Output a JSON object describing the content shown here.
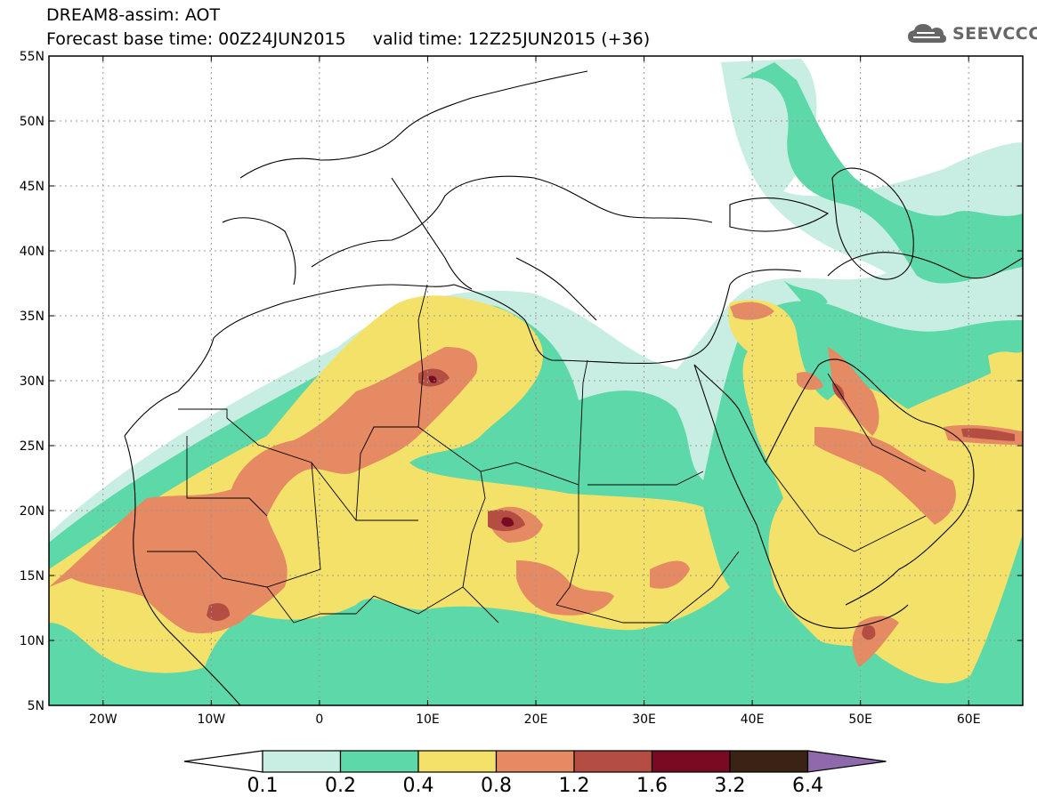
{
  "title_line1": "DREAM8-assim: AOT",
  "title_line2_left": "Forecast base time: 00Z24JUN2015",
  "title_line2_right": "valid time: 12Z25JUN2015 (+36)",
  "logo": {
    "text": "SEEVCCC",
    "icon": "cloud-icon",
    "color": "#666666"
  },
  "map": {
    "lon_range": [
      -25,
      65
    ],
    "lat_range": [
      5,
      55
    ],
    "lat_ticks": [
      {
        "value": 55,
        "label": "55N"
      },
      {
        "value": 50,
        "label": "50N"
      },
      {
        "value": 45,
        "label": "45N"
      },
      {
        "value": 40,
        "label": "40N"
      },
      {
        "value": 35,
        "label": "35N"
      },
      {
        "value": 30,
        "label": "30N"
      },
      {
        "value": 25,
        "label": "25N"
      },
      {
        "value": 20,
        "label": "20N"
      },
      {
        "value": 15,
        "label": "15N"
      },
      {
        "value": 10,
        "label": "10N"
      },
      {
        "value": 5,
        "label": "5N"
      }
    ],
    "lon_ticks": [
      {
        "value": -20,
        "label": "20W"
      },
      {
        "value": -10,
        "label": "10W"
      },
      {
        "value": 0,
        "label": "0"
      },
      {
        "value": 10,
        "label": "10E"
      },
      {
        "value": 20,
        "label": "20E"
      },
      {
        "value": 30,
        "label": "30E"
      },
      {
        "value": 40,
        "label": "40E"
      },
      {
        "value": 50,
        "label": "50E"
      },
      {
        "value": 60,
        "label": "60E"
      }
    ]
  },
  "colorbar": {
    "colors": [
      "#c8eee4",
      "#5dd8a8",
      "#f4e16a",
      "#e58a62",
      "#b54e42",
      "#7a0a22",
      "#3a2214"
    ],
    "over_color": "#8e6aac",
    "under_color": "#ffffff",
    "labels": [
      "0.1",
      "0.2",
      "0.4",
      "0.8",
      "1.2",
      "1.6",
      "3.2",
      "6.4"
    ]
  }
}
